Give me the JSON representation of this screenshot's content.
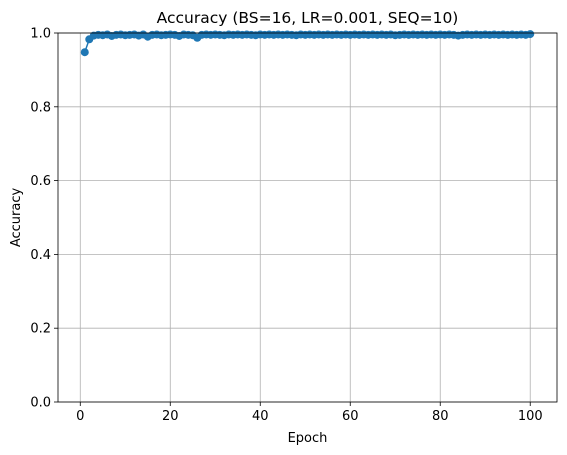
{
  "chart_data": {
    "type": "line",
    "title": "Accuracy (BS=16, LR=0.001, SEQ=10)",
    "xlabel": "Epoch",
    "ylabel": "Accuracy",
    "xlim": [
      -4.95,
      105.95
    ],
    "ylim": [
      0.0,
      1.0
    ],
    "xticks": [
      0,
      20,
      40,
      60,
      80,
      100
    ],
    "yticks": [
      0.0,
      0.2,
      0.4,
      0.6,
      0.8,
      1.0
    ],
    "xtick_labels": [
      "0",
      "20",
      "40",
      "60",
      "80",
      "100"
    ],
    "ytick_labels": [
      "0.0",
      "0.2",
      "0.4",
      "0.6",
      "0.8",
      "1.0"
    ],
    "grid": true,
    "marker": "circle",
    "color": "#1f77b4",
    "series": [
      {
        "x": [
          1,
          2,
          3,
          4,
          5,
          6,
          7,
          8,
          9,
          10,
          11,
          12,
          13,
          14,
          15,
          16,
          17,
          18,
          19,
          20,
          21,
          22,
          23,
          24,
          25,
          26,
          27,
          28,
          29,
          30,
          31,
          32,
          33,
          34,
          35,
          36,
          37,
          38,
          39,
          40,
          41,
          42,
          43,
          44,
          45,
          46,
          47,
          48,
          49,
          50,
          51,
          52,
          53,
          54,
          55,
          56,
          57,
          58,
          59,
          60,
          61,
          62,
          63,
          64,
          65,
          66,
          67,
          68,
          69,
          70,
          71,
          72,
          73,
          74,
          75,
          76,
          77,
          78,
          79,
          80,
          81,
          82,
          83,
          84,
          85,
          86,
          87,
          88,
          89,
          90,
          91,
          92,
          93,
          94,
          95,
          96,
          97,
          98,
          99,
          100
        ],
        "values": [
          0.948,
          0.983,
          0.993,
          0.995,
          0.994,
          0.996,
          0.992,
          0.995,
          0.996,
          0.994,
          0.995,
          0.996,
          0.993,
          0.996,
          0.99,
          0.995,
          0.996,
          0.994,
          0.995,
          0.996,
          0.995,
          0.992,
          0.996,
          0.995,
          0.994,
          0.987,
          0.995,
          0.996,
          0.995,
          0.996,
          0.995,
          0.994,
          0.996,
          0.995,
          0.996,
          0.995,
          0.996,
          0.995,
          0.994,
          0.996,
          0.995,
          0.996,
          0.995,
          0.996,
          0.995,
          0.996,
          0.995,
          0.994,
          0.996,
          0.995,
          0.996,
          0.995,
          0.996,
          0.995,
          0.996,
          0.995,
          0.996,
          0.995,
          0.996,
          0.995,
          0.996,
          0.995,
          0.996,
          0.995,
          0.996,
          0.995,
          0.996,
          0.995,
          0.996,
          0.994,
          0.995,
          0.996,
          0.995,
          0.996,
          0.995,
          0.996,
          0.995,
          0.996,
          0.995,
          0.996,
          0.995,
          0.996,
          0.995,
          0.993,
          0.995,
          0.996,
          0.995,
          0.996,
          0.995,
          0.996,
          0.995,
          0.996,
          0.995,
          0.996,
          0.995,
          0.996,
          0.995,
          0.996,
          0.995,
          0.997
        ]
      }
    ]
  }
}
